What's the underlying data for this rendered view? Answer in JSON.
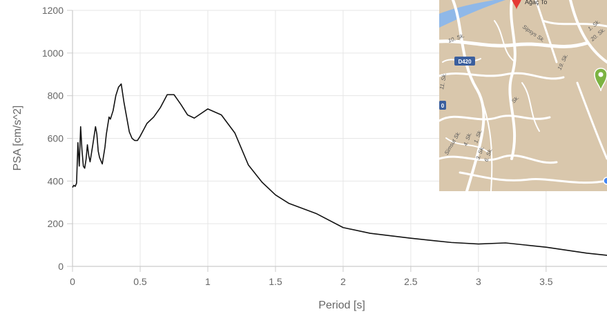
{
  "chart_data": {
    "type": "line",
    "title": "",
    "xlabel": "Period [s]",
    "ylabel": "PSA [cm/s^2]",
    "xlim": [
      0,
      3.95
    ],
    "ylim": [
      0,
      1200
    ],
    "grid": true,
    "x_ticks": [
      "0",
      "0.5",
      "1",
      "1.5",
      "2",
      "2.5",
      "3",
      "3.5"
    ],
    "y_ticks": [
      "0",
      "200",
      "400",
      "600",
      "800",
      "1000",
      "1200"
    ],
    "color": "#111111",
    "series": [
      {
        "name": "",
        "x": [
          0,
          0.01,
          0.02,
          0.03,
          0.04,
          0.05,
          0.06,
          0.07,
          0.08,
          0.09,
          0.1,
          0.11,
          0.12,
          0.13,
          0.15,
          0.17,
          0.18,
          0.19,
          0.2,
          0.22,
          0.24,
          0.25,
          0.27,
          0.28,
          0.3,
          0.32,
          0.34,
          0.36,
          0.38,
          0.4,
          0.42,
          0.44,
          0.46,
          0.48,
          0.5,
          0.55,
          0.6,
          0.65,
          0.7,
          0.75,
          0.8,
          0.85,
          0.9,
          1,
          1.1,
          1.2,
          1.3,
          1.4,
          1.5,
          1.6,
          1.8,
          2,
          2.2,
          2.5,
          2.8,
          3,
          3.2,
          3.5,
          3.8,
          3.95
        ],
        "y": [
          370,
          380,
          375,
          390,
          580,
          470,
          655,
          545,
          470,
          460,
          500,
          570,
          520,
          490,
          570,
          655,
          620,
          540,
          510,
          480,
          560,
          620,
          700,
          690,
          730,
          800,
          840,
          855,
          770,
          700,
          630,
          600,
          590,
          590,
          610,
          670,
          700,
          745,
          805,
          805,
          760,
          710,
          695,
          738,
          710,
          625,
          475,
          395,
          335,
          295,
          248,
          182,
          155,
          132,
          112,
          105,
          110,
          90,
          62,
          52
        ]
      }
    ]
  },
  "map": {
    "road_badge": "D420",
    "left_badge": "0",
    "street_labels": [
      "10. Sk.",
      "Sipsys Sk.",
      "11. Sk.",
      "Simsut Sk.",
      "4. Sk.",
      "1. Sk.",
      "6. Sk.",
      "3. Sk.",
      "19. Sk.",
      "1. Sk.",
      "20. Sk.",
      "Sk."
    ],
    "marker_red_label": "Ağaç To",
    "colors": {
      "land": "#d9c7ac",
      "road": "#ffffff",
      "water": "#8fb8e8",
      "marker_red": "#e53935",
      "marker_green": "#7cb342",
      "badge": "#3b5f9e"
    }
  }
}
